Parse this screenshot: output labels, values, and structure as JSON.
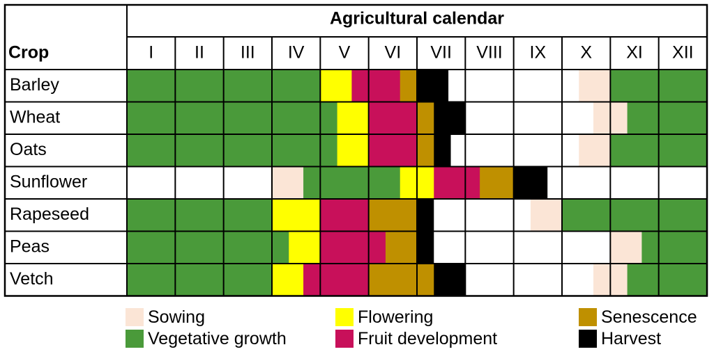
{
  "chart_data": {
    "type": "table",
    "title": "Agricultural calendar",
    "crop_header": "Crop",
    "months": [
      "I",
      "II",
      "III",
      "IV",
      "V",
      "VI",
      "VII",
      "VIII",
      "IX",
      "X",
      "XI",
      "XII"
    ],
    "stages": {
      "W": {
        "label": "",
        "color": "#ffffff"
      },
      "S": {
        "label": "Sowing",
        "color": "#fbe5d6"
      },
      "G": {
        "label": "Vegetative growth",
        "color": "#4a9a3a"
      },
      "F": {
        "label": "Flowering",
        "color": "#ffff00"
      },
      "D": {
        "label": "Fruit development",
        "color": "#c8105a"
      },
      "N": {
        "label": "Senescence",
        "color": "#bf9000"
      },
      "H": {
        "label": "Harvest",
        "color": "#000000"
      }
    },
    "legend_order": [
      "S",
      "G",
      "F",
      "D",
      "N",
      "H"
    ],
    "crops": [
      {
        "name": "Barley",
        "months": [
          [
            [
              "G",
              1
            ]
          ],
          [
            [
              "G",
              1
            ]
          ],
          [
            [
              "G",
              1
            ]
          ],
          [
            [
              "G",
              1
            ]
          ],
          [
            [
              "F",
              0.65
            ],
            [
              "D",
              0.35
            ]
          ],
          [
            [
              "D",
              0.65
            ],
            [
              "N",
              0.35
            ]
          ],
          [
            [
              "H",
              0.65
            ],
            [
              "W",
              0.35
            ]
          ],
          [
            [
              "W",
              1
            ]
          ],
          [
            [
              "W",
              1
            ]
          ],
          [
            [
              "W",
              0.35
            ],
            [
              "S",
              0.65
            ]
          ],
          [
            [
              "G",
              1
            ]
          ],
          [
            [
              "G",
              1
            ]
          ]
        ]
      },
      {
        "name": "Wheat",
        "months": [
          [
            [
              "G",
              1
            ]
          ],
          [
            [
              "G",
              1
            ]
          ],
          [
            [
              "G",
              1
            ]
          ],
          [
            [
              "G",
              1
            ]
          ],
          [
            [
              "G",
              0.35
            ],
            [
              "F",
              0.65
            ]
          ],
          [
            [
              "D",
              1
            ]
          ],
          [
            [
              "N",
              0.35
            ],
            [
              "H",
              0.65
            ]
          ],
          [
            [
              "W",
              1
            ]
          ],
          [
            [
              "W",
              1
            ]
          ],
          [
            [
              "W",
              0.65
            ],
            [
              "S",
              0.35
            ]
          ],
          [
            [
              "S",
              0.35
            ],
            [
              "G",
              0.65
            ]
          ],
          [
            [
              "G",
              1
            ]
          ]
        ]
      },
      {
        "name": "Oats",
        "months": [
          [
            [
              "G",
              1
            ]
          ],
          [
            [
              "G",
              1
            ]
          ],
          [
            [
              "G",
              1
            ]
          ],
          [
            [
              "G",
              1
            ]
          ],
          [
            [
              "G",
              0.35
            ],
            [
              "F",
              0.65
            ]
          ],
          [
            [
              "D",
              1
            ]
          ],
          [
            [
              "N",
              0.35
            ],
            [
              "H",
              0.35
            ],
            [
              "W",
              0.3
            ]
          ],
          [
            [
              "W",
              1
            ]
          ],
          [
            [
              "W",
              1
            ]
          ],
          [
            [
              "W",
              0.35
            ],
            [
              "S",
              0.65
            ]
          ],
          [
            [
              "G",
              1
            ]
          ],
          [
            [
              "G",
              1
            ]
          ]
        ]
      },
      {
        "name": "Sunflower",
        "months": [
          [
            [
              "W",
              1
            ]
          ],
          [
            [
              "W",
              1
            ]
          ],
          [
            [
              "W",
              1
            ]
          ],
          [
            [
              "S",
              0.65
            ],
            [
              "G",
              0.35
            ]
          ],
          [
            [
              "G",
              1
            ]
          ],
          [
            [
              "G",
              0.65
            ],
            [
              "F",
              0.35
            ]
          ],
          [
            [
              "F",
              0.35
            ],
            [
              "D",
              0.65
            ]
          ],
          [
            [
              "D",
              0.3
            ],
            [
              "N",
              0.7
            ]
          ],
          [
            [
              "H",
              0.7
            ],
            [
              "W",
              0.3
            ]
          ],
          [
            [
              "W",
              1
            ]
          ],
          [
            [
              "W",
              1
            ]
          ],
          [
            [
              "W",
              1
            ]
          ]
        ]
      },
      {
        "name": "Rapeseed",
        "months": [
          [
            [
              "G",
              1
            ]
          ],
          [
            [
              "G",
              1
            ]
          ],
          [
            [
              "G",
              1
            ]
          ],
          [
            [
              "F",
              1
            ]
          ],
          [
            [
              "D",
              1
            ]
          ],
          [
            [
              "N",
              1
            ]
          ],
          [
            [
              "H",
              0.35
            ],
            [
              "W",
              0.65
            ]
          ],
          [
            [
              "W",
              1
            ]
          ],
          [
            [
              "W",
              0.35
            ],
            [
              "S",
              0.65
            ]
          ],
          [
            [
              "G",
              1
            ]
          ],
          [
            [
              "G",
              1
            ]
          ],
          [
            [
              "G",
              1
            ]
          ]
        ]
      },
      {
        "name": "Peas",
        "months": [
          [
            [
              "G",
              1
            ]
          ],
          [
            [
              "G",
              1
            ]
          ],
          [
            [
              "G",
              1
            ]
          ],
          [
            [
              "G",
              0.35
            ],
            [
              "F",
              0.65
            ]
          ],
          [
            [
              "D",
              1
            ]
          ],
          [
            [
              "D",
              0.35
            ],
            [
              "N",
              0.65
            ]
          ],
          [
            [
              "H",
              0.35
            ],
            [
              "W",
              0.65
            ]
          ],
          [
            [
              "W",
              1
            ]
          ],
          [
            [
              "W",
              1
            ]
          ],
          [
            [
              "W",
              1
            ]
          ],
          [
            [
              "S",
              0.65
            ],
            [
              "G",
              0.35
            ]
          ],
          [
            [
              "G",
              1
            ]
          ]
        ]
      },
      {
        "name": "Vetch",
        "months": [
          [
            [
              "G",
              1
            ]
          ],
          [
            [
              "G",
              1
            ]
          ],
          [
            [
              "G",
              1
            ]
          ],
          [
            [
              "F",
              0.65
            ],
            [
              "D",
              0.35
            ]
          ],
          [
            [
              "D",
              1
            ]
          ],
          [
            [
              "N",
              1
            ]
          ],
          [
            [
              "N",
              0.35
            ],
            [
              "H",
              0.65
            ]
          ],
          [
            [
              "W",
              1
            ]
          ],
          [
            [
              "W",
              1
            ]
          ],
          [
            [
              "W",
              0.65
            ],
            [
              "S",
              0.35
            ]
          ],
          [
            [
              "S",
              0.35
            ],
            [
              "G",
              0.65
            ]
          ],
          [
            [
              "G",
              1
            ]
          ]
        ]
      }
    ]
  }
}
